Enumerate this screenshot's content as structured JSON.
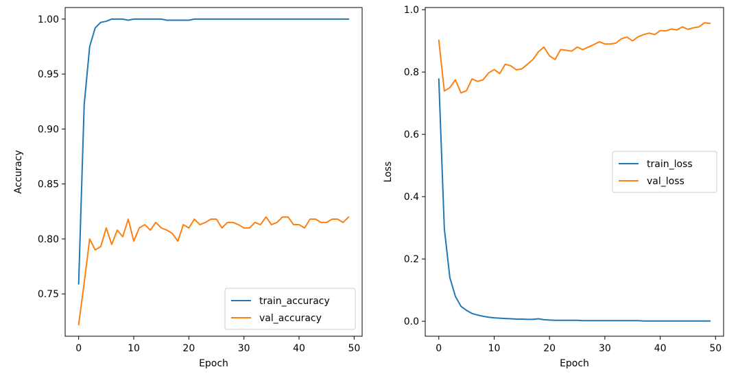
{
  "chart_data": [
    {
      "type": "line",
      "title": "",
      "xlabel": "Epoch",
      "ylabel": "Accuracy",
      "xlim": [
        -2.45,
        51.45
      ],
      "ylim": [
        0.7115,
        1.0105
      ],
      "xticks": [
        0,
        10,
        20,
        30,
        40,
        50
      ],
      "yticks": [
        0.75,
        0.8,
        0.85,
        0.9,
        0.95,
        1.0
      ],
      "ytick_labels": [
        "0.75",
        "0.80",
        "0.85",
        "0.90",
        "0.95",
        "1.00"
      ],
      "grid": false,
      "legend_position": "lower-right",
      "x": [
        0,
        1,
        2,
        3,
        4,
        5,
        6,
        7,
        8,
        9,
        10,
        11,
        12,
        13,
        14,
        15,
        16,
        17,
        18,
        19,
        20,
        21,
        22,
        23,
        24,
        25,
        26,
        27,
        28,
        29,
        30,
        31,
        32,
        33,
        34,
        35,
        36,
        37,
        38,
        39,
        40,
        41,
        42,
        43,
        44,
        45,
        46,
        47,
        48,
        49
      ],
      "series": [
        {
          "name": "train_accuracy",
          "color": "#1f77b4",
          "values": [
            0.759,
            0.922,
            0.975,
            0.992,
            0.997,
            0.998,
            1.0,
            1.0,
            1.0,
            0.999,
            1.0,
            1.0,
            1.0,
            1.0,
            1.0,
            1.0,
            0.999,
            0.999,
            0.999,
            0.999,
            0.999,
            1.0,
            1.0,
            1.0,
            1.0,
            1.0,
            1.0,
            1.0,
            1.0,
            1.0,
            1.0,
            1.0,
            1.0,
            1.0,
            1.0,
            1.0,
            1.0,
            1.0,
            1.0,
            1.0,
            1.0,
            1.0,
            1.0,
            1.0,
            1.0,
            1.0,
            1.0,
            1.0,
            1.0,
            1.0
          ]
        },
        {
          "name": "val_accuracy",
          "color": "#ff7f0e",
          "values": [
            0.722,
            0.76,
            0.8,
            0.79,
            0.793,
            0.81,
            0.795,
            0.808,
            0.802,
            0.818,
            0.798,
            0.81,
            0.813,
            0.808,
            0.815,
            0.81,
            0.808,
            0.805,
            0.798,
            0.813,
            0.81,
            0.818,
            0.813,
            0.815,
            0.818,
            0.818,
            0.81,
            0.815,
            0.815,
            0.813,
            0.81,
            0.81,
            0.815,
            0.813,
            0.82,
            0.813,
            0.815,
            0.82,
            0.82,
            0.813,
            0.813,
            0.81,
            0.818,
            0.818,
            0.815,
            0.815,
            0.818,
            0.818,
            0.815,
            0.82
          ]
        }
      ]
    },
    {
      "type": "line",
      "title": "",
      "xlabel": "Epoch",
      "ylabel": "Loss",
      "xlim": [
        -2.45,
        51.45
      ],
      "ylim": [
        -0.048,
        1.007
      ],
      "xticks": [
        0,
        10,
        20,
        30,
        40,
        50
      ],
      "yticks": [
        0.0,
        0.2,
        0.4,
        0.6,
        0.8,
        1.0
      ],
      "ytick_labels": [
        "0.0",
        "0.2",
        "0.4",
        "0.6",
        "0.8",
        "1.0"
      ],
      "grid": false,
      "legend_position": "center-right",
      "x": [
        0,
        1,
        2,
        3,
        4,
        5,
        6,
        7,
        8,
        9,
        10,
        11,
        12,
        13,
        14,
        15,
        16,
        17,
        18,
        19,
        20,
        21,
        22,
        23,
        24,
        25,
        26,
        27,
        28,
        29,
        30,
        31,
        32,
        33,
        34,
        35,
        36,
        37,
        38,
        39,
        40,
        41,
        42,
        43,
        44,
        45,
        46,
        47,
        48,
        49
      ],
      "series": [
        {
          "name": "train_loss",
          "color": "#1f77b4",
          "values": [
            0.778,
            0.297,
            0.14,
            0.08,
            0.048,
            0.035,
            0.025,
            0.02,
            0.016,
            0.013,
            0.011,
            0.01,
            0.009,
            0.008,
            0.007,
            0.007,
            0.006,
            0.006,
            0.008,
            0.005,
            0.004,
            0.003,
            0.003,
            0.003,
            0.003,
            0.003,
            0.002,
            0.002,
            0.002,
            0.002,
            0.002,
            0.002,
            0.002,
            0.002,
            0.002,
            0.002,
            0.002,
            0.001,
            0.001,
            0.001,
            0.001,
            0.001,
            0.001,
            0.001,
            0.001,
            0.001,
            0.001,
            0.001,
            0.001,
            0.001
          ]
        },
        {
          "name": "val_loss",
          "color": "#ff7f0e",
          "values": [
            0.902,
            0.739,
            0.75,
            0.775,
            0.733,
            0.74,
            0.778,
            0.77,
            0.775,
            0.797,
            0.808,
            0.795,
            0.825,
            0.82,
            0.807,
            0.81,
            0.825,
            0.84,
            0.865,
            0.88,
            0.852,
            0.84,
            0.872,
            0.87,
            0.867,
            0.88,
            0.872,
            0.88,
            0.888,
            0.897,
            0.89,
            0.89,
            0.893,
            0.907,
            0.912,
            0.9,
            0.913,
            0.92,
            0.925,
            0.92,
            0.933,
            0.932,
            0.938,
            0.935,
            0.945,
            0.937,
            0.942,
            0.945,
            0.958,
            0.956
          ]
        }
      ]
    }
  ]
}
